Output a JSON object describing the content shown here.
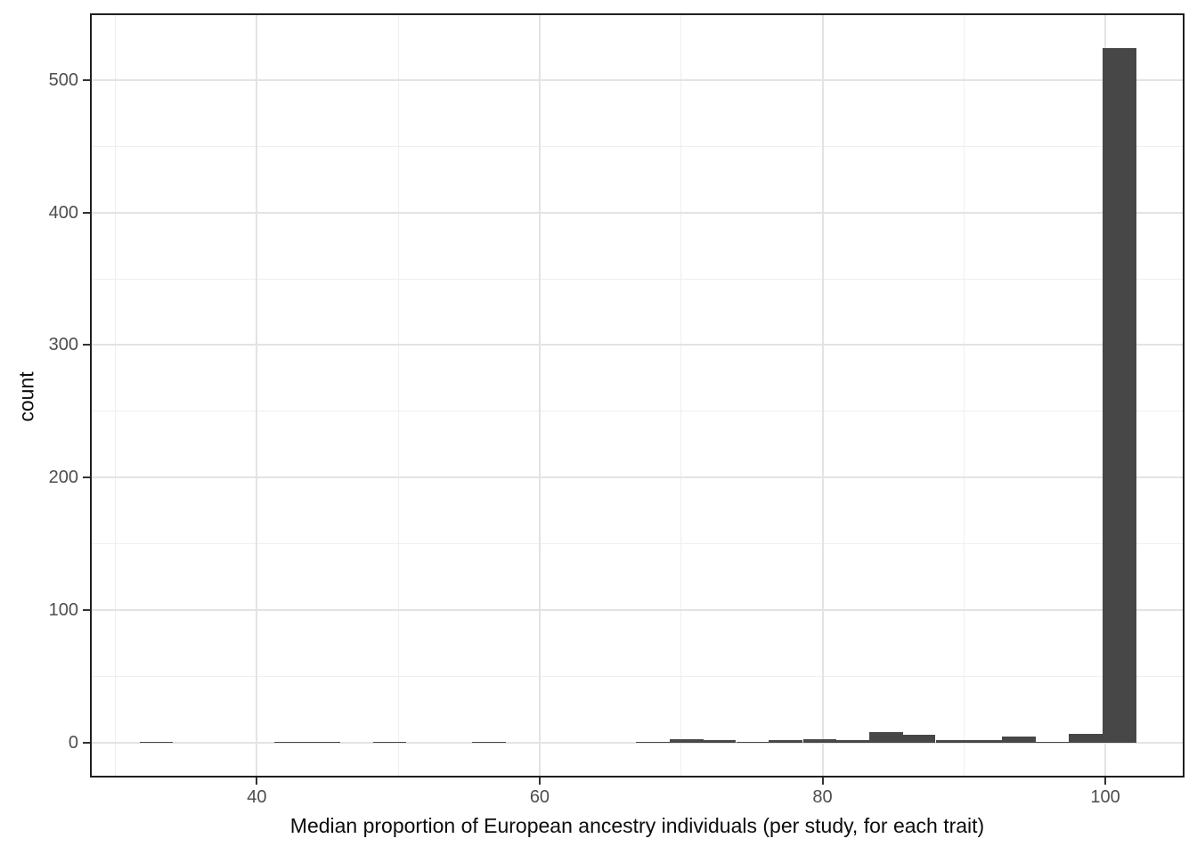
{
  "figure": {
    "background_color": "#ffffff",
    "panel_border_color": "#1f1f1f",
    "grid_major_color": "#e3e3e3",
    "grid_minor_color": "#efefef",
    "tick_color": "#333333",
    "tick_label_color": "#4d4d4d",
    "axis_title_color": "#0d0d0d"
  },
  "chart_data": {
    "type": "bar",
    "subtype": "histogram",
    "title": "",
    "xlabel": "Median proportion of European ancestry individuals (per study, for each trait)",
    "ylabel": "count",
    "bar_color": "#474747",
    "grid": true,
    "legend": false,
    "xlim": [
      28.2,
      105.6
    ],
    "ylim": [
      -26.2,
      550.2
    ],
    "x_ticks": [
      40,
      60,
      80,
      100
    ],
    "y_ticks": [
      0,
      100,
      200,
      300,
      400,
      500
    ],
    "x_minor_ticks": [
      30,
      50,
      70,
      90
    ],
    "y_minor_ticks": [
      50,
      150,
      250,
      350,
      450
    ],
    "bin_width": 2.37,
    "bins": [
      {
        "center": 32.9,
        "count": 1
      },
      {
        "center": 42.4,
        "count": 1
      },
      {
        "center": 44.7,
        "count": 1
      },
      {
        "center": 49.4,
        "count": 1
      },
      {
        "center": 56.4,
        "count": 1
      },
      {
        "center": 68.0,
        "count": 1
      },
      {
        "center": 70.4,
        "count": 3
      },
      {
        "center": 72.7,
        "count": 2
      },
      {
        "center": 75.1,
        "count": 1
      },
      {
        "center": 77.4,
        "count": 2
      },
      {
        "center": 79.8,
        "count": 3
      },
      {
        "center": 82.1,
        "count": 2
      },
      {
        "center": 84.5,
        "count": 8
      },
      {
        "center": 86.8,
        "count": 6
      },
      {
        "center": 89.2,
        "count": 2
      },
      {
        "center": 91.5,
        "count": 2
      },
      {
        "center": 93.9,
        "count": 5
      },
      {
        "center": 96.2,
        "count": 1
      },
      {
        "center": 98.6,
        "count": 7
      },
      {
        "center": 101.0,
        "count": 524
      }
    ]
  }
}
